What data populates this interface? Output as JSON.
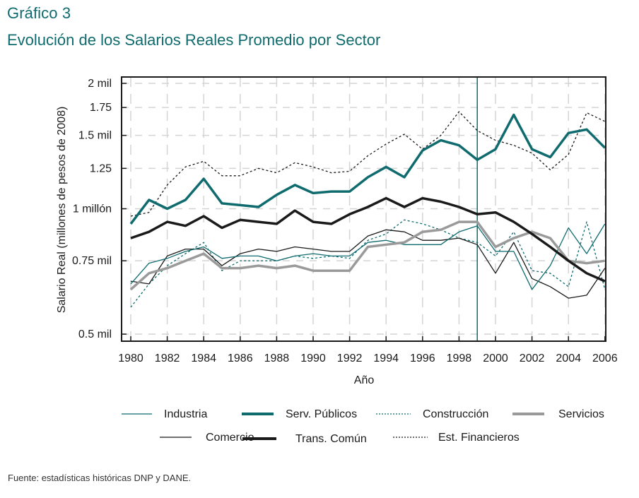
{
  "header": {
    "figure_number": "Gráfico 3",
    "title": "Evolución de los Salarios Reales Promedio por Sector"
  },
  "footer": {
    "source": "Fuente: estadísticas históricas DNP y DANE."
  },
  "colors": {
    "teal": "#0f6b6e",
    "black": "#1a1a1a",
    "gray": "#9a9a9a",
    "grid": "#d4d4d4"
  },
  "chart_data": {
    "type": "line",
    "title": "Evolución de los Salarios Reales Promedio por Sector",
    "xlabel": "Año",
    "ylabel": "Salario Real (millones de pesos de 2008)",
    "yscale": "log",
    "ylim": [
      0.5,
      2.1
    ],
    "xlim": [
      1980,
      2006
    ],
    "grid": true,
    "legend_position": "bottom",
    "x_ticks": [
      1980,
      1982,
      1984,
      1986,
      1988,
      1990,
      1992,
      1994,
      1996,
      1998,
      2000,
      2002,
      2004,
      2006
    ],
    "y_ticks": [
      {
        "value": 2.0,
        "label": "2 mil"
      },
      {
        "value": 1.75,
        "label": "1.75"
      },
      {
        "value": 1.5,
        "label": "1.5 mil"
      },
      {
        "value": 1.25,
        "label": "1.25"
      },
      {
        "value": 1.0,
        "label": "1 millón"
      },
      {
        "value": 0.75,
        "label": "0.75 mil"
      },
      {
        "value": 0.5,
        "label": "0.5 mil"
      }
    ],
    "vertical_marker": 1999,
    "x": [
      1980,
      1981,
      1982,
      1983,
      1984,
      1985,
      1986,
      1987,
      1988,
      1989,
      1990,
      1991,
      1992,
      1993,
      1994,
      1995,
      1996,
      1997,
      1998,
      1999,
      2000,
      2001,
      2002,
      2003,
      2004,
      2005,
      2006
    ],
    "series": [
      {
        "name": "Industria",
        "color": "teal",
        "style": "thin-solid",
        "values": [
          0.66,
          0.74,
          0.76,
          0.79,
          0.81,
          0.76,
          0.77,
          0.77,
          0.75,
          0.77,
          0.78,
          0.77,
          0.77,
          0.83,
          0.84,
          0.82,
          0.82,
          0.82,
          0.88,
          0.91,
          0.79,
          0.79,
          0.64,
          0.73,
          0.9,
          0.78,
          0.92
        ]
      },
      {
        "name": "Serv. Públicos",
        "color": "teal",
        "style": "thick-solid",
        "values": [
          0.92,
          1.05,
          1.0,
          1.05,
          1.18,
          1.03,
          1.02,
          1.01,
          1.08,
          1.14,
          1.09,
          1.1,
          1.1,
          1.19,
          1.26,
          1.19,
          1.38,
          1.46,
          1.42,
          1.31,
          1.39,
          1.68,
          1.39,
          1.33,
          1.52,
          1.55,
          1.4
        ]
      },
      {
        "name": "Construcción",
        "color": "teal",
        "style": "thin-dashed",
        "values": [
          0.58,
          0.66,
          0.73,
          0.78,
          0.83,
          0.71,
          0.75,
          0.75,
          0.75,
          0.77,
          0.76,
          0.77,
          0.76,
          0.84,
          0.87,
          0.94,
          0.92,
          0.89,
          0.85,
          0.83,
          0.77,
          0.88,
          0.71,
          0.7,
          0.65,
          0.93,
          0.64
        ]
      },
      {
        "name": "Servicios",
        "color": "gray",
        "style": "thick-solid",
        "values": [
          0.64,
          0.7,
          0.72,
          0.75,
          0.78,
          0.72,
          0.72,
          0.73,
          0.72,
          0.73,
          0.71,
          0.71,
          0.71,
          0.81,
          0.82,
          0.83,
          0.88,
          0.89,
          0.93,
          0.93,
          0.81,
          0.85,
          0.88,
          0.85,
          0.75,
          0.74,
          0.75
        ]
      },
      {
        "name": "Comercio",
        "color": "black",
        "style": "thin-solid",
        "values": [
          0.67,
          0.66,
          0.77,
          0.8,
          0.8,
          0.73,
          0.78,
          0.8,
          0.79,
          0.81,
          0.8,
          0.79,
          0.79,
          0.86,
          0.89,
          0.88,
          0.84,
          0.84,
          0.85,
          0.82,
          0.7,
          0.83,
          0.68,
          0.65,
          0.61,
          0.62,
          0.72
        ]
      },
      {
        "name": "Trans. Común",
        "color": "black",
        "style": "thick-solid",
        "values": [
          0.85,
          0.88,
          0.93,
          0.91,
          0.96,
          0.9,
          0.94,
          0.93,
          0.92,
          0.99,
          0.93,
          0.92,
          0.97,
          1.01,
          1.06,
          1.01,
          1.06,
          1.04,
          1.01,
          0.97,
          0.98,
          0.93,
          0.87,
          0.81,
          0.75,
          0.7,
          0.67
        ]
      },
      {
        "name": "Est. Financieros",
        "color": "black",
        "style": "thin-dashed",
        "values": [
          0.96,
          0.98,
          1.14,
          1.26,
          1.3,
          1.2,
          1.2,
          1.25,
          1.22,
          1.29,
          1.26,
          1.22,
          1.23,
          1.34,
          1.43,
          1.51,
          1.39,
          1.5,
          1.71,
          1.54,
          1.46,
          1.42,
          1.36,
          1.24,
          1.35,
          1.7,
          1.62
        ]
      }
    ]
  }
}
